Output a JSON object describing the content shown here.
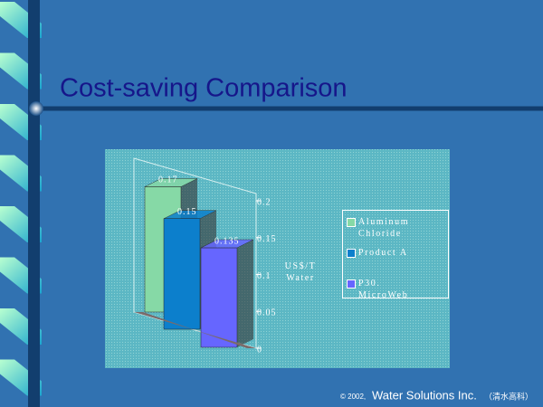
{
  "chart_data": {
    "type": "bar3d",
    "title": "Cost-saving Comparison",
    "categories": [
      null
    ],
    "series": [
      {
        "name": "Aluminum Chloride",
        "color": "#86d9a6",
        "values": [
          0.17
        ]
      },
      {
        "name": "Product A",
        "color": "#0c7fcc",
        "values": [
          0.15
        ]
      },
      {
        "name": "P30. MicroWeb",
        "color": "#6666ff",
        "values": [
          0.135
        ]
      }
    ],
    "ylabel": "US$/T Water",
    "ylim": [
      0,
      0.2
    ],
    "yticks": [
      0,
      0.05,
      0.1,
      0.15,
      0.2
    ]
  },
  "footer": {
    "copyright": "© 2002,",
    "company": "Water Solutions Inc.",
    "chinese": "（清水高科）"
  }
}
